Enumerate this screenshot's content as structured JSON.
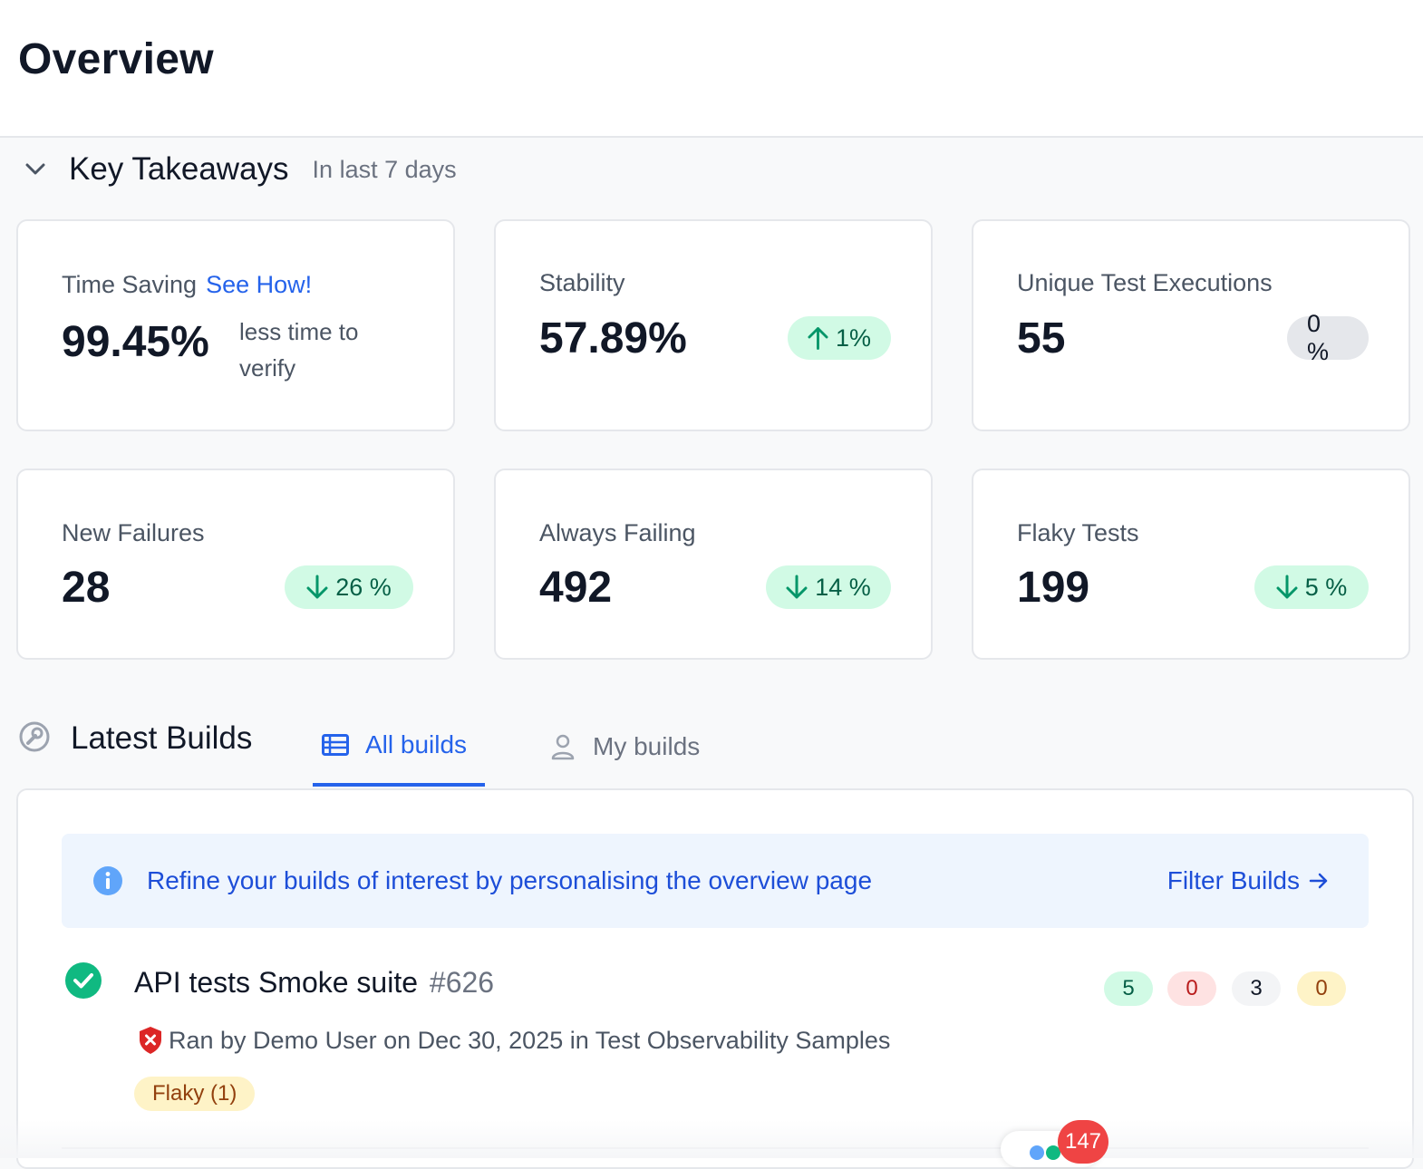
{
  "header": {
    "title": "Overview"
  },
  "key_takeaways": {
    "title": "Key Takeaways",
    "subtitle": "In last 7 days",
    "cards": {
      "time_saving": {
        "label": "Time Saving",
        "link": "See How!",
        "value": "99.45%",
        "note": "less time to verify"
      },
      "stability": {
        "label": "Stability",
        "value": "57.89%",
        "change": "1%",
        "direction": "up"
      },
      "unique_tests": {
        "label": "Unique Test Executions",
        "value": "55",
        "change": "0 %"
      },
      "new_failures": {
        "label": "New Failures",
        "value": "28",
        "change": "26 %",
        "direction": "down"
      },
      "always_failing": {
        "label": "Always Failing",
        "value": "492",
        "change": "14 %",
        "direction": "down"
      },
      "flaky_tests": {
        "label": "Flaky Tests",
        "value": "199",
        "change": "5 %",
        "direction": "down"
      }
    }
  },
  "latest_builds": {
    "title": "Latest Builds",
    "tabs": {
      "all": "All builds",
      "mine": "My builds"
    },
    "active_tab": "All builds",
    "banner": {
      "text": "Refine your builds of interest by personalising the overview page",
      "action": "Filter Builds"
    },
    "builds": [
      {
        "name": "API tests Smoke suite",
        "number": "#626",
        "meta": "Ran by Demo User on Dec 30, 2025 in Test Observability Samples",
        "tag": "Flaky (1)",
        "counts": {
          "passed": "5",
          "failed": "0",
          "skipped": "3",
          "flaky": "0"
        }
      }
    ]
  },
  "notifications": {
    "count": "147"
  },
  "colors": {
    "accent": "#2563eb",
    "success": "#10b981",
    "danger": "#dc2626",
    "warning": "#fef3c7"
  }
}
